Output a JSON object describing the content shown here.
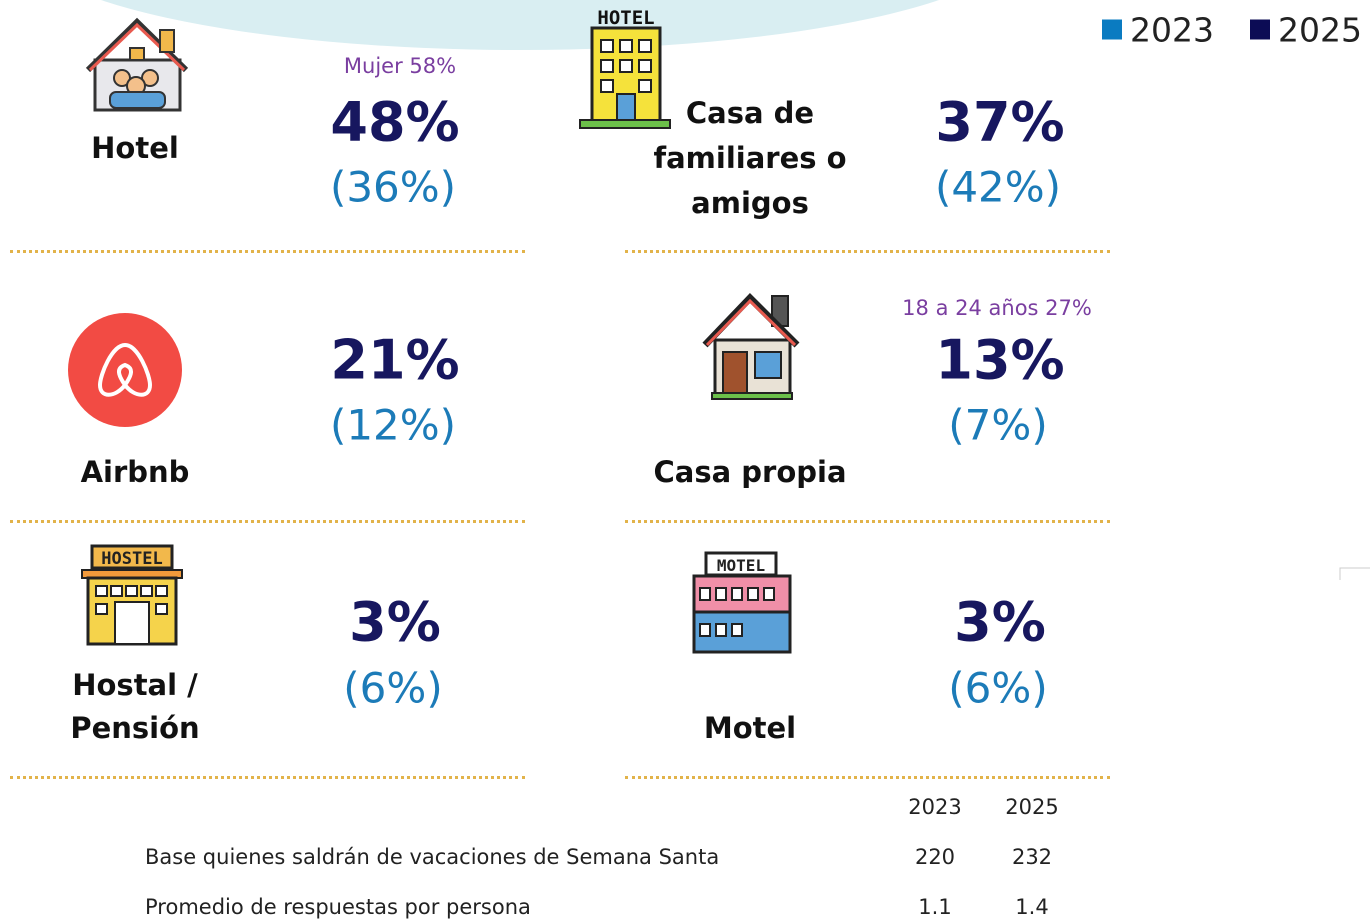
{
  "legend": [
    "2023",
    "2025"
  ],
  "items": [
    {
      "label": [
        "Hotel"
      ],
      "note": "Mujer 58%",
      "value_2025": "48%",
      "value_2023": "(36%)"
    },
    {
      "label": [
        "Casa de",
        "familiares o",
        "amigos"
      ],
      "value_2025": "37%",
      "value_2023": "(42%)"
    },
    {
      "label": [
        "Airbnb"
      ],
      "value_2025": "21%",
      "value_2023": "(12%)"
    },
    {
      "label": [
        "Casa propia"
      ],
      "note": "18 a 24 años 27%",
      "value_2025": "13%",
      "value_2023": "(7%)"
    },
    {
      "label": [
        "Hostal /",
        "Pensión"
      ],
      "value_2025": "3%",
      "value_2023": "(6%)"
    },
    {
      "label": [
        "Motel"
      ],
      "value_2025": "3%",
      "value_2023": "(6%)"
    }
  ],
  "icons": {
    "hotel_sign": "HOTEL",
    "hostel_sign": "HOSTEL",
    "motel_sign": "MOTEL"
  },
  "table": {
    "header": [
      "2023",
      "2025"
    ],
    "rows": [
      [
        "Base quienes saldrán de vacaciones de Semana Santa",
        "220",
        "232"
      ],
      [
        "Promedio de respuestas por persona",
        "1.1",
        "1.4"
      ]
    ]
  }
}
